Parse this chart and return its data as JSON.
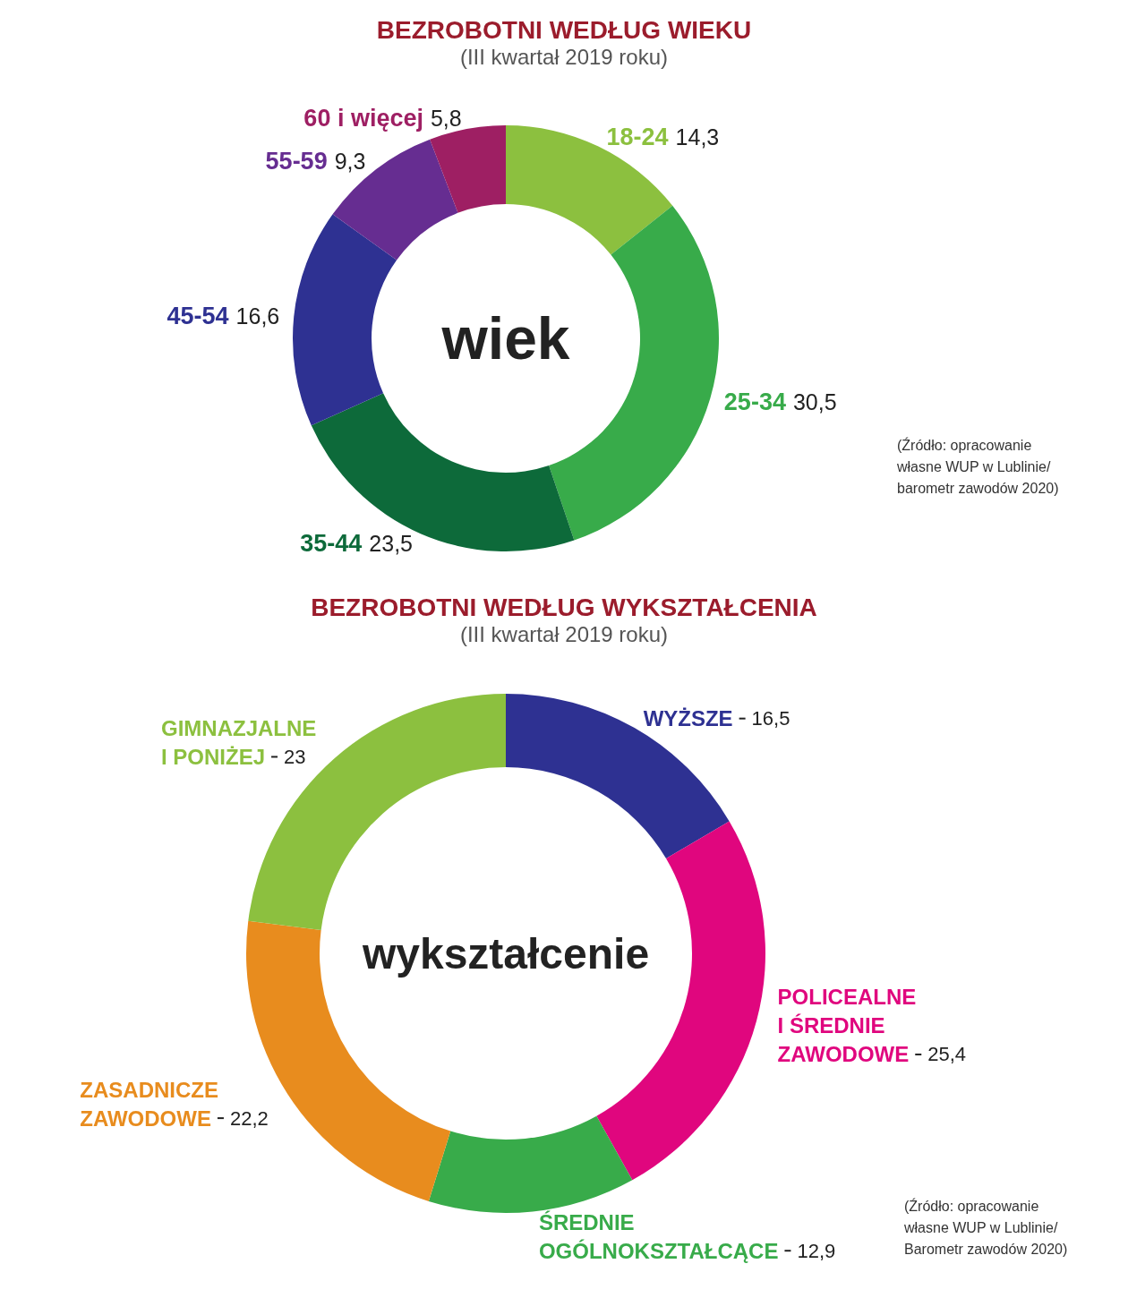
{
  "chart_data": [
    {
      "type": "donut",
      "title": "BEZROBOTNI WEDŁUG WIEKU",
      "subtitle": "(III kwartał 2019 roku)",
      "categories": [
        "18-24",
        "25-34",
        "35-44",
        "45-54",
        "55-59",
        "60 i więcej"
      ],
      "values": [
        14.3,
        30.5,
        23.5,
        16.6,
        9.3,
        5.8
      ],
      "value_labels": [
        "14,3",
        "30,5",
        "23,5",
        "16,6",
        "9,3",
        "5,8"
      ],
      "colors": [
        "#8cc03f",
        "#38ab4a",
        "#0d6a3a",
        "#2e3192",
        "#662d91",
        "#9e1f63"
      ],
      "annotations": [
        "wiek",
        "(Źródło: opracowanie własne WUP w Lublinie/barometr zawodów 2020)"
      ]
    },
    {
      "type": "donut",
      "title": "BEZROBOTNI WEDŁUG WYKSZTAŁCENIA",
      "subtitle": "(III kwartał 2019 roku)",
      "categories": [
        "WYŻSZE",
        "POLICEALNE I ŚREDNIE ZAWODOWE",
        "ŚREDNIE OGÓLNOKSZTAŁCĄCE",
        "ZASADNICZE ZAWODOWE",
        "GIMNAZJALNE I PONIŻEJ"
      ],
      "values": [
        16.5,
        25.4,
        12.9,
        22.2,
        23
      ],
      "value_labels": [
        "16,5",
        "25,4",
        "12,9",
        "22,2",
        "23"
      ],
      "colors": [
        "#2e3192",
        "#e0067e",
        "#38ab4a",
        "#e88c1e",
        "#8cc03f"
      ],
      "annotations": [
        "wykształcenie",
        "(Źródło: opracowanie własne WUP w Lublinie/ Barometr zawodów 2020)"
      ]
    }
  ]
}
